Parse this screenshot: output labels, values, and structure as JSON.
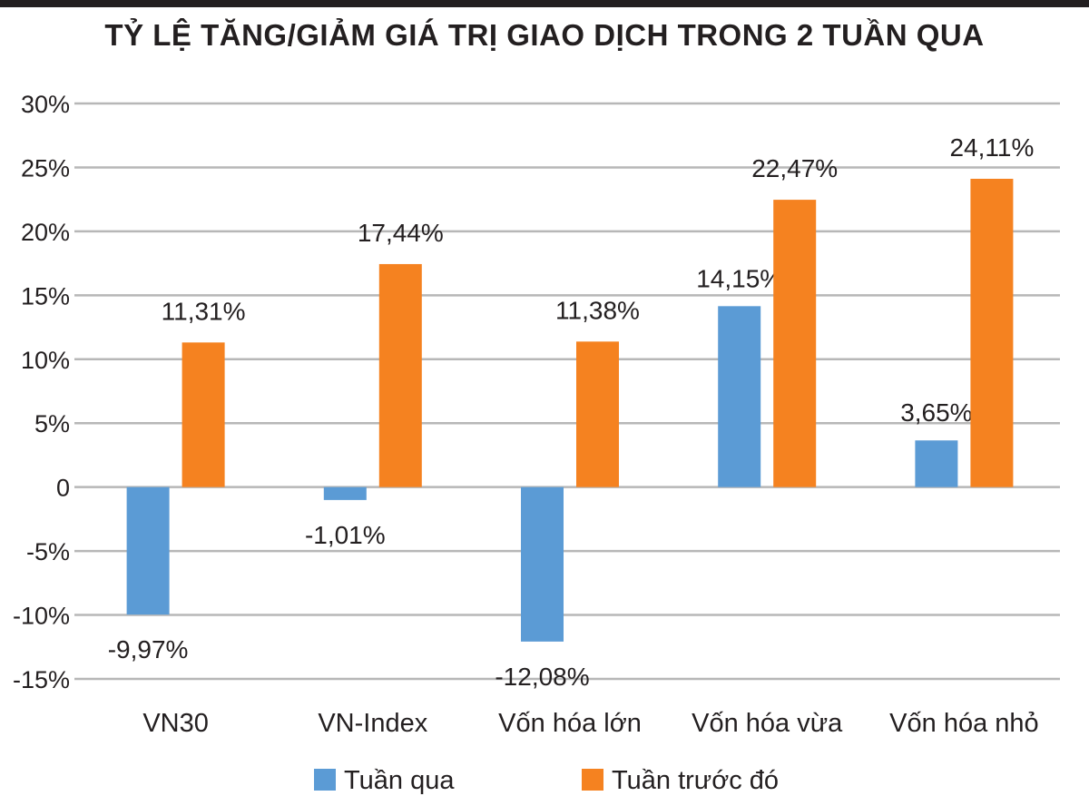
{
  "chart_data": {
    "type": "bar",
    "title": "TỶ LỆ TĂNG/GIẢM GIÁ TRỊ GIAO DỊCH TRONG 2 TUẦN QUA",
    "categories": [
      "VN30",
      "VN-Index",
      "Vốn hóa lớn",
      "Vốn hóa vừa",
      "Vốn hóa nhỏ"
    ],
    "series": [
      {
        "name": "Tuần qua",
        "color": "#5b9bd5",
        "values": [
          -9.97,
          -1.01,
          -12.08,
          14.15,
          3.65
        ],
        "labels": [
          "-9,97%",
          "-1,01%",
          "-12,08%",
          "14,15%",
          "3,65%"
        ]
      },
      {
        "name": "Tuần trước đó",
        "color": "#f58220",
        "values": [
          11.31,
          17.44,
          11.38,
          22.47,
          24.11
        ],
        "labels": [
          "11,31%",
          "17,44%",
          "11,38%",
          "22,47%",
          "24,11%"
        ]
      }
    ],
    "ylim": [
      -15,
      30
    ],
    "yticks": [
      30,
      25,
      20,
      15,
      10,
      5,
      0,
      -5,
      -10,
      -15
    ],
    "ytick_labels": [
      "30%",
      "25%",
      "20%",
      "15%",
      "10%",
      "5%",
      "0",
      "-5%",
      "-10%",
      "-15%"
    ],
    "grid": true,
    "legend_position": "bottom"
  }
}
